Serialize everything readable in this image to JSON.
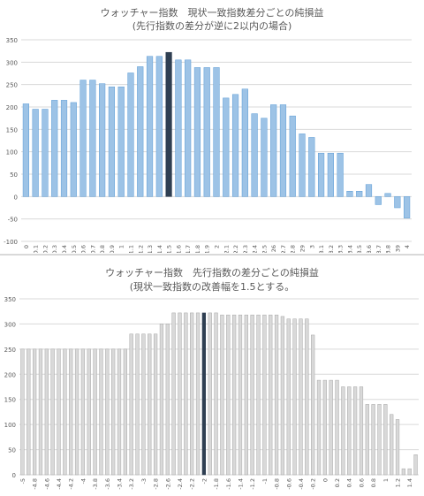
{
  "chart_data": [
    {
      "type": "bar",
      "title": "ウォッチャー指数　現状一致指数差分ごとの純損益",
      "subtitle": "(先行指数の差分が逆に2以内の場合)",
      "categories": [
        "0",
        "0.1",
        "0.2",
        "0.3",
        "0.4",
        "0.5",
        "0.6",
        "0.7",
        "0.8",
        "0.9",
        "1",
        "1.1",
        "1.2",
        "1.3",
        "1.4",
        "1.5",
        "1.6",
        "1.7",
        "1.8",
        "1.9",
        "2",
        "2.1",
        "2.2",
        "2.3",
        "2.4",
        "2.5",
        "2.6",
        "2.7",
        "2.8",
        "2.9",
        "3",
        "3.1",
        "3.2",
        "3.3",
        "3.4",
        "3.5",
        "3.6",
        "3.7",
        "3.8",
        "3.9",
        "4"
      ],
      "tick_labels": [
        "0",
        "0.1",
        "0.2",
        "0.3",
        "0.4",
        "0.5",
        "0.6",
        "0.7",
        "0.8",
        "0.9",
        "1",
        "1.1",
        "1.2",
        "1.3",
        "1.4",
        "1.5",
        "1.6",
        "1.7",
        "1.8",
        "1.9",
        "2",
        "2.1",
        "2.2",
        "2.3",
        "2.4",
        "2.5",
        "26",
        "2.7",
        "2.8",
        "29",
        "3",
        "3.1",
        "3.2",
        "3.3",
        "3.4",
        "3.5",
        "3.6",
        "3.7",
        "3.8",
        "39",
        "4"
      ],
      "values": [
        207,
        195,
        195,
        215,
        215,
        210,
        260,
        260,
        252,
        245,
        245,
        276,
        290,
        313,
        313,
        322,
        305,
        305,
        288,
        288,
        288,
        220,
        228,
        240,
        185,
        175,
        205,
        205,
        180,
        140,
        132,
        97,
        97,
        97,
        12,
        12,
        27,
        -18,
        7,
        -25,
        -48
      ],
      "highlight_index": 15,
      "ylim": [
        -100,
        350
      ],
      "yticks": [
        -100,
        -50,
        0,
        50,
        100,
        150,
        200,
        250,
        300,
        350
      ],
      "grid": true,
      "colors": {
        "bar": "#9dc3e6",
        "bar_border": "#5b9bd5",
        "highlight": "#2f3f52",
        "grid": "#d9d9d9"
      }
    },
    {
      "type": "bar",
      "title": "ウォッチャー指数　先行指数の差分ごとの純損益",
      "subtitle": "(現状一致指数の改善幅を1.5とする。",
      "categories": [
        "-5",
        "-4.9",
        "-4.8",
        "-4.7",
        "-4.6",
        "-4.5",
        "-4.4",
        "-4.3",
        "-4.2",
        "-4.1",
        "-4",
        "-3.9",
        "-3.8",
        "-3.7",
        "-3.6",
        "-3.5",
        "-3.4",
        "-3.3",
        "-3.2",
        "-3.1",
        "-3",
        "-2.9",
        "-2.8",
        "-2.7",
        "-2.6",
        "-2.5",
        "-2.4",
        "-2.3",
        "-2.2",
        "-2.1",
        "-2",
        "-1.9",
        "-1.8",
        "-1.7",
        "-1.6",
        "-1.5",
        "-1.4",
        "-1.3",
        "-1.2",
        "-1.1",
        "-1",
        "-0.9",
        "-0.8",
        "-0.7",
        "-0.6",
        "-0.5",
        "-0.4",
        "-0.3",
        "-0.2",
        "-0.1",
        "0",
        "0.1",
        "0.2",
        "0.3",
        "0.4",
        "0.5",
        "0.6",
        "0.7",
        "0.8",
        "0.9",
        "1",
        "1.1",
        "1.2",
        "1.3",
        "1.4",
        "1.5"
      ],
      "tick_labels": [
        "-5",
        "-4.8",
        "-4.6",
        "-4.4",
        "-4.2",
        "-4",
        "-3.8",
        "-3.6",
        "-3.4",
        "-3.2",
        "-3",
        "-2.8",
        "-2.6",
        "-2.4",
        "-2.2",
        "-2",
        "-1.8",
        "-1.6",
        "-1.4",
        "-1.2",
        "-1",
        "-0.8",
        "-0.6",
        "-0.4",
        "-0.2",
        "0",
        "0.2",
        "0.4",
        "0.6",
        "0.8",
        "1",
        "1.2",
        "1.4"
      ],
      "values": [
        250,
        250,
        250,
        250,
        250,
        250,
        250,
        250,
        250,
        250,
        250,
        250,
        250,
        250,
        250,
        250,
        250,
        250,
        280,
        280,
        280,
        280,
        280,
        300,
        300,
        322,
        322,
        322,
        322,
        322,
        322,
        322,
        322,
        318,
        318,
        318,
        318,
        318,
        318,
        318,
        318,
        318,
        318,
        315,
        310,
        310,
        310,
        310,
        278,
        188,
        188,
        188,
        188,
        175,
        175,
        175,
        175,
        140,
        140,
        140,
        140,
        120,
        110,
        12,
        12,
        40
      ],
      "highlight_index": 30,
      "ylim": [
        0,
        350
      ],
      "yticks": [
        0,
        50,
        100,
        150,
        200,
        250,
        300,
        350
      ],
      "grid": true,
      "colors": {
        "bar": "#d9d9d9",
        "bar_border": "#a6a6a6",
        "highlight": "#2f3f52",
        "grid": "#d9d9d9"
      }
    }
  ]
}
